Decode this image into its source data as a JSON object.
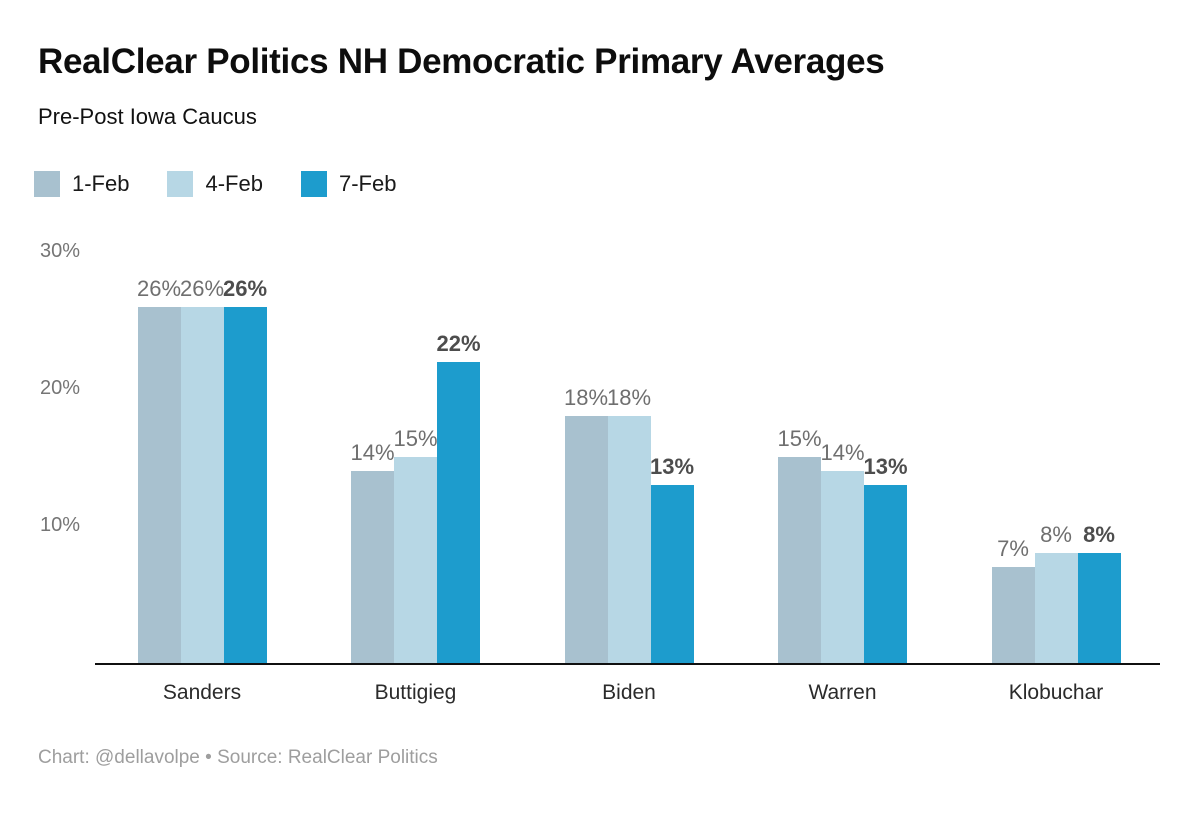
{
  "header": {
    "title": "RealClear Politics NH Democratic Primary Averages",
    "subtitle": "Pre-Post Iowa Caucus"
  },
  "footer": {
    "credit": "Chart: @dellavolpe • Source: RealClear Politics"
  },
  "colors": {
    "series_1feb": "#a8c1cf",
    "series_4feb": "#b7d7e5",
    "series_7feb": "#1d9ccd",
    "axis_line": "#101010",
    "value_label": "#6f6f6f",
    "value_label_bold": "#4d4d4d",
    "tick_label": "#757575",
    "category_label": "#2b2b2b",
    "footer_text": "#9e9e9e"
  },
  "chart_data": {
    "type": "bar",
    "title": "RealClear Politics NH Democratic Primary Averages",
    "subtitle": "Pre-Post Iowa Caucus",
    "categories": [
      "Sanders",
      "Buttigieg",
      "Biden",
      "Warren",
      "Klobuchar"
    ],
    "series": [
      {
        "name": "1-Feb",
        "color": "#a8c1cf",
        "values": [
          26,
          14,
          18,
          15,
          7
        ],
        "bold_labels": false
      },
      {
        "name": "4-Feb",
        "color": "#b7d7e5",
        "values": [
          26,
          15,
          18,
          14,
          8
        ],
        "bold_labels": false
      },
      {
        "name": "7-Feb",
        "color": "#1d9ccd",
        "values": [
          26,
          22,
          13,
          13,
          8
        ],
        "bold_labels": true
      }
    ],
    "value_suffix": "%",
    "yticks": [
      10,
      20,
      30
    ],
    "ytick_suffix": "%",
    "ylim": [
      0,
      31.6
    ],
    "grid": false,
    "legend_position": "top-left",
    "xlabel": "",
    "ylabel": ""
  }
}
